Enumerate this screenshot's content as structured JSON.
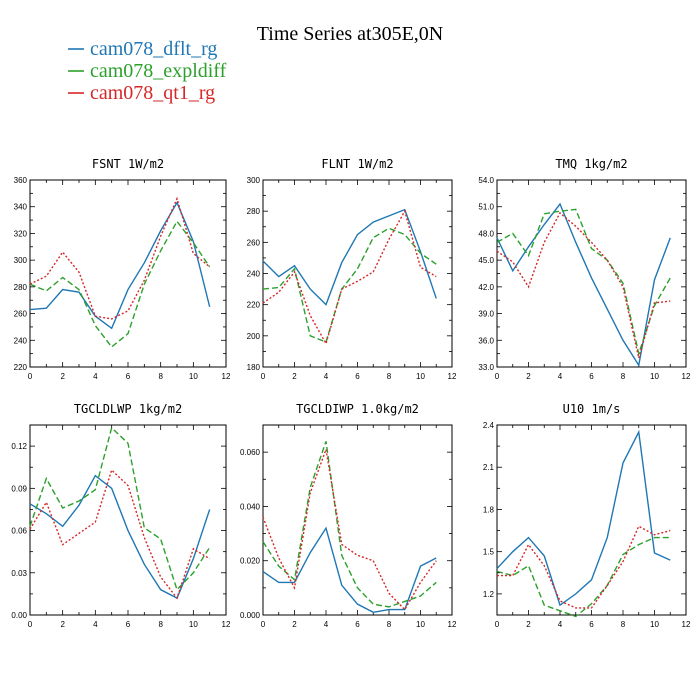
{
  "title": "Time Series at305E,0N",
  "legend": [
    {
      "name": "cam078_dflt_rg",
      "color": "#1f77b4",
      "dash": "solid"
    },
    {
      "name": "cam078_expldiff",
      "color": "#2ca02c",
      "dash": "dashed"
    },
    {
      "name": "cam078_qt1_rg",
      "color": "#d62728",
      "dash": "dotted"
    }
  ],
  "chart_data": [
    {
      "type": "line",
      "title": "FSNT   1W/m2",
      "x": [
        0,
        1,
        2,
        3,
        4,
        5,
        6,
        7,
        8,
        9,
        10,
        11
      ],
      "xlim": [
        0,
        12
      ],
      "xticks": [
        0,
        2,
        4,
        6,
        8,
        10,
        12
      ],
      "xtick_labels": [
        "0",
        "2",
        "4",
        "6",
        "8",
        "10",
        "12"
      ],
      "ylim": [
        220,
        360
      ],
      "yticks": [
        220,
        240,
        260,
        280,
        300,
        320,
        340,
        360
      ],
      "ytick_labels": [
        "220",
        "240",
        "260",
        "280",
        "300",
        "320",
        "340",
        "360"
      ],
      "series": [
        {
          "name": "cam078_dflt_rg",
          "values": [
            263,
            264,
            278,
            276,
            258,
            249,
            278,
            298,
            322,
            343,
            314,
            265
          ]
        },
        {
          "name": "cam078_expldiff",
          "values": [
            282,
            277,
            287,
            278,
            251,
            235,
            245,
            282,
            307,
            329,
            313,
            295
          ]
        },
        {
          "name": "cam078_qt1_rg",
          "values": [
            282,
            288,
            306,
            291,
            258,
            256,
            262,
            285,
            318,
            346,
            305,
            295
          ]
        }
      ]
    },
    {
      "type": "line",
      "title": "FLNT   1W/m2",
      "x": [
        0,
        1,
        2,
        3,
        4,
        5,
        6,
        7,
        8,
        9,
        10,
        11
      ],
      "xlim": [
        0,
        12
      ],
      "xticks": [
        0,
        2,
        4,
        6,
        8,
        10,
        12
      ],
      "xtick_labels": [
        "0",
        "2",
        "4",
        "6",
        "8",
        "10",
        "12"
      ],
      "ylim": [
        180,
        300
      ],
      "yticks": [
        180,
        200,
        220,
        240,
        260,
        280,
        300
      ],
      "ytick_labels": [
        "180",
        "200",
        "220",
        "240",
        "260",
        "280",
        "300"
      ],
      "series": [
        {
          "name": "cam078_dflt_rg",
          "values": [
            248,
            238,
            245,
            230,
            220,
            247,
            265,
            273,
            277,
            281,
            254,
            224
          ]
        },
        {
          "name": "cam078_expldiff",
          "values": [
            230,
            231,
            243,
            200,
            196,
            230,
            243,
            263,
            269,
            265,
            253,
            246
          ]
        },
        {
          "name": "cam078_qt1_rg",
          "values": [
            221,
            228,
            241,
            213,
            195,
            230,
            235,
            241,
            262,
            280,
            244,
            238
          ]
        }
      ]
    },
    {
      "type": "line",
      "title": "TMQ   1kg/m2",
      "x": [
        0,
        1,
        2,
        3,
        4,
        5,
        6,
        7,
        8,
        9,
        10,
        11
      ],
      "xlim": [
        0,
        12
      ],
      "xticks": [
        0,
        2,
        4,
        6,
        8,
        10,
        12
      ],
      "xtick_labels": [
        "0",
        "2",
        "4",
        "6",
        "8",
        "10",
        "12"
      ],
      "ylim": [
        33.0,
        54.0
      ],
      "yticks": [
        33,
        36,
        39,
        42,
        45,
        48,
        51,
        54
      ],
      "ytick_labels": [
        "33.0",
        "36.0",
        "39.0",
        "42.0",
        "45.0",
        "48.0",
        "51.0",
        "54.0"
      ],
      "series": [
        {
          "name": "cam078_dflt_rg",
          "values": [
            47.5,
            43.8,
            46.5,
            49.0,
            51.3,
            47.0,
            43.0,
            39.5,
            36.0,
            33.2,
            42.8,
            47.5
          ]
        },
        {
          "name": "cam078_expldiff",
          "values": [
            47.0,
            48.0,
            45.5,
            50.2,
            50.5,
            50.7,
            46.3,
            45.0,
            42.4,
            34.5,
            39.9,
            43.0
          ]
        },
        {
          "name": "cam078_qt1_rg",
          "values": [
            46.0,
            44.8,
            42.0,
            47.0,
            50.3,
            48.8,
            47.0,
            45.0,
            42.0,
            34.0,
            40.2,
            40.4
          ]
        }
      ]
    },
    {
      "type": "line",
      "title": "TGCLDLWP   1kg/m2",
      "x": [
        0,
        1,
        2,
        3,
        4,
        5,
        6,
        7,
        8,
        9,
        10,
        11
      ],
      "xlim": [
        0,
        12
      ],
      "xticks": [
        0,
        2,
        4,
        6,
        8,
        10,
        12
      ],
      "xtick_labels": [
        "0",
        "2",
        "4",
        "6",
        "8",
        "10",
        "12"
      ],
      "ylim": [
        0.0,
        0.135
      ],
      "yticks": [
        0,
        0.03,
        0.06,
        0.09,
        0.12
      ],
      "ytick_labels": [
        "0.00",
        "0.03",
        "0.06",
        "0.09",
        "0.12"
      ],
      "series": [
        {
          "name": "cam078_dflt_rg",
          "values": [
            0.079,
            0.072,
            0.063,
            0.078,
            0.099,
            0.09,
            0.06,
            0.036,
            0.018,
            0.012,
            0.04,
            0.075
          ]
        },
        {
          "name": "cam078_expldiff",
          "values": [
            0.063,
            0.097,
            0.076,
            0.081,
            0.089,
            0.133,
            0.122,
            0.062,
            0.054,
            0.018,
            0.03,
            0.048
          ]
        },
        {
          "name": "cam078_qt1_rg",
          "values": [
            0.061,
            0.08,
            0.05,
            0.058,
            0.066,
            0.103,
            0.092,
            0.055,
            0.027,
            0.012,
            0.047,
            0.04
          ]
        }
      ]
    },
    {
      "type": "line",
      "title": "TGCLDIWP   1.0kg/m2",
      "x": [
        0,
        1,
        2,
        3,
        4,
        5,
        6,
        7,
        8,
        9,
        10,
        11
      ],
      "xlim": [
        0,
        12
      ],
      "xticks": [
        0,
        2,
        4,
        6,
        8,
        10,
        12
      ],
      "xtick_labels": [
        "0",
        "2",
        "4",
        "6",
        "8",
        "10",
        "12"
      ],
      "ylim": [
        0.0,
        0.07
      ],
      "yticks": [
        0,
        0.02,
        0.04,
        0.06
      ],
      "ytick_labels": [
        "0.000",
        "0.020",
        "0.040",
        "0.060"
      ],
      "series": [
        {
          "name": "cam078_dflt_rg",
          "values": [
            0.016,
            0.012,
            0.012,
            0.023,
            0.032,
            0.011,
            0.004,
            0.001,
            0.002,
            0.002,
            0.018,
            0.021
          ]
        },
        {
          "name": "cam078_expldiff",
          "values": [
            0.027,
            0.018,
            0.013,
            0.047,
            0.064,
            0.022,
            0.01,
            0.004,
            0.003,
            0.005,
            0.007,
            0.012
          ]
        },
        {
          "name": "cam078_qt1_rg",
          "values": [
            0.036,
            0.021,
            0.01,
            0.045,
            0.061,
            0.026,
            0.022,
            0.02,
            0.008,
            0.002,
            0.012,
            0.02
          ]
        }
      ]
    },
    {
      "type": "line",
      "title": "U10   1m/s",
      "x": [
        0,
        1,
        2,
        3,
        4,
        5,
        6,
        7,
        8,
        9,
        10,
        11
      ],
      "xlim": [
        0,
        12
      ],
      "xticks": [
        0,
        2,
        4,
        6,
        8,
        10,
        12
      ],
      "xtick_labels": [
        "0",
        "2",
        "4",
        "6",
        "8",
        "10",
        "12"
      ],
      "ylim": [
        1.05,
        2.4
      ],
      "yticks": [
        1.2,
        1.5,
        1.8,
        2.1,
        2.4
      ],
      "ytick_labels": [
        "1.2",
        "1.5",
        "1.8",
        "2.1",
        "2.4"
      ],
      "series": [
        {
          "name": "cam078_dflt_rg",
          "values": [
            1.38,
            1.5,
            1.6,
            1.47,
            1.12,
            1.2,
            1.3,
            1.6,
            2.13,
            2.35,
            1.49,
            1.44
          ]
        },
        {
          "name": "cam078_expldiff",
          "values": [
            1.36,
            1.33,
            1.4,
            1.12,
            1.08,
            1.04,
            1.13,
            1.26,
            1.48,
            1.55,
            1.6,
            1.6
          ]
        },
        {
          "name": "cam078_qt1_rg",
          "values": [
            1.33,
            1.33,
            1.55,
            1.4,
            1.15,
            1.1,
            1.1,
            1.26,
            1.43,
            1.68,
            1.62,
            1.65
          ]
        }
      ]
    }
  ]
}
